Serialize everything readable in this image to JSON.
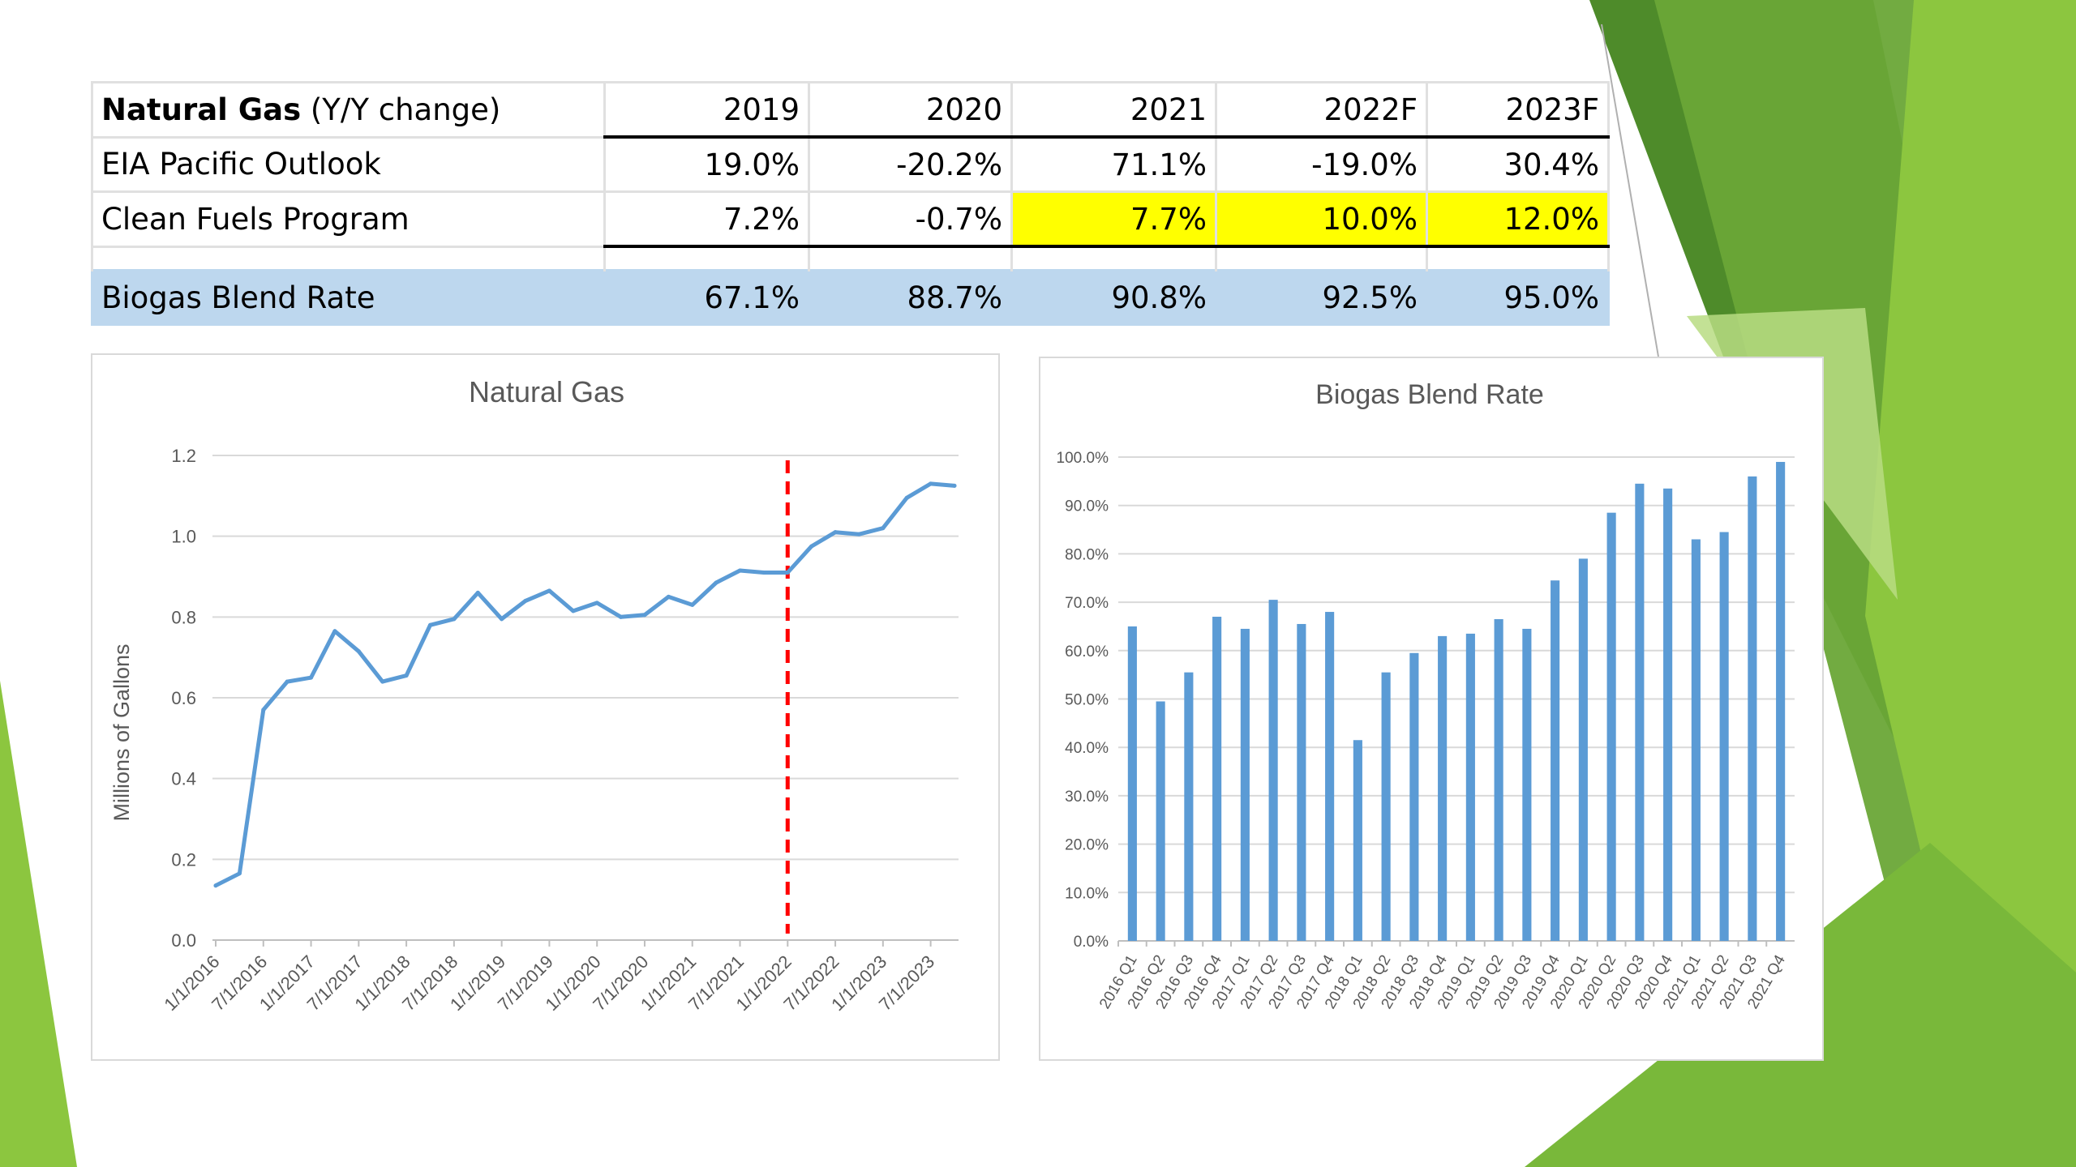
{
  "table": {
    "header_label_bold": "Natural Gas",
    "header_label_rest": " (Y/Y change)",
    "years": [
      "2019",
      "2020",
      "2021",
      "2022F",
      "2023F"
    ],
    "rows": [
      {
        "label": "EIA Pacific Outlook",
        "values": [
          "19.0%",
          "-20.2%",
          "71.1%",
          "-19.0%",
          "30.4%"
        ]
      },
      {
        "label": "Clean Fuels Program",
        "values": [
          "7.2%",
          "-0.7%",
          "7.7%",
          "10.0%",
          "12.0%"
        ]
      }
    ],
    "blend_row": {
      "label": "Biogas Blend Rate",
      "values": [
        "67.1%",
        "88.7%",
        "90.8%",
        "92.5%",
        "95.0%"
      ]
    }
  },
  "colors": {
    "highlight": "#ffff00",
    "blend_row_bg": "#bdd7ee",
    "series": "#5b9bd5",
    "divider": "#ff0000",
    "slide_green_light": "#8cc63f",
    "slide_green_dark": "#4e8b2a"
  },
  "chart_data": [
    {
      "type": "line",
      "title": "Natural Gas",
      "xlabel": "",
      "ylabel": "Millions of Gallons",
      "ylim": [
        0,
        1.2
      ],
      "yticks": [
        "0.0",
        "0.2",
        "0.4",
        "0.6",
        "0.8",
        "1.0",
        "1.2"
      ],
      "xtick_labels": [
        "1/1/2016",
        "7/1/2016",
        "1/1/2017",
        "7/1/2017",
        "1/1/2018",
        "7/1/2018",
        "1/1/2019",
        "7/1/2019",
        "1/1/2020",
        "7/1/2020",
        "1/1/2021",
        "7/1/2021",
        "1/1/2022",
        "7/1/2022",
        "1/1/2023",
        "7/1/2023"
      ],
      "x": [
        "2016-01",
        "2016-04",
        "2016-07",
        "2016-10",
        "2017-01",
        "2017-04",
        "2017-07",
        "2017-10",
        "2018-01",
        "2018-04",
        "2018-07",
        "2018-10",
        "2019-01",
        "2019-04",
        "2019-07",
        "2019-10",
        "2020-01",
        "2020-04",
        "2020-07",
        "2020-10",
        "2021-01",
        "2021-04",
        "2021-07",
        "2021-10",
        "2022-01",
        "2022-04",
        "2022-07",
        "2022-10",
        "2023-01",
        "2023-04",
        "2023-07",
        "2023-10"
      ],
      "values": [
        0.135,
        0.165,
        0.57,
        0.64,
        0.65,
        0.765,
        0.715,
        0.64,
        0.655,
        0.78,
        0.795,
        0.86,
        0.795,
        0.84,
        0.865,
        0.815,
        0.835,
        0.8,
        0.805,
        0.85,
        0.83,
        0.885,
        0.915,
        0.91,
        0.91,
        0.975,
        1.01,
        1.005,
        1.02,
        1.095,
        1.13,
        1.125
      ],
      "forecast_marker": "1/1/2022",
      "grid": true,
      "legend": "none"
    },
    {
      "type": "bar",
      "title": "Biogas Blend Rate",
      "xlabel": "",
      "ylabel": "",
      "ylim": [
        0,
        100
      ],
      "yticks": [
        "0.0%",
        "10.0%",
        "20.0%",
        "30.0%",
        "40.0%",
        "50.0%",
        "60.0%",
        "70.0%",
        "80.0%",
        "90.0%",
        "100.0%"
      ],
      "categories": [
        "2016 Q1",
        "2016 Q2",
        "2016 Q3",
        "2016 Q4",
        "2017 Q1",
        "2017 Q2",
        "2017 Q3",
        "2017 Q4",
        "2018 Q1",
        "2018 Q2",
        "2018 Q3",
        "2018 Q4",
        "2019 Q1",
        "2019 Q2",
        "2019 Q3",
        "2019 Q4",
        "2020 Q1",
        "2020 Q2",
        "2020 Q3",
        "2020 Q4",
        "2021 Q1",
        "2021 Q2",
        "2021 Q3",
        "2021 Q4"
      ],
      "values": [
        65.0,
        49.5,
        55.5,
        67.0,
        64.5,
        70.5,
        65.5,
        68.0,
        41.5,
        55.5,
        59.5,
        63.0,
        63.5,
        66.5,
        64.5,
        74.5,
        79.0,
        88.5,
        94.5,
        93.5,
        83.0,
        84.5,
        96.0,
        99.0
      ],
      "grid": true,
      "legend": "none"
    }
  ]
}
